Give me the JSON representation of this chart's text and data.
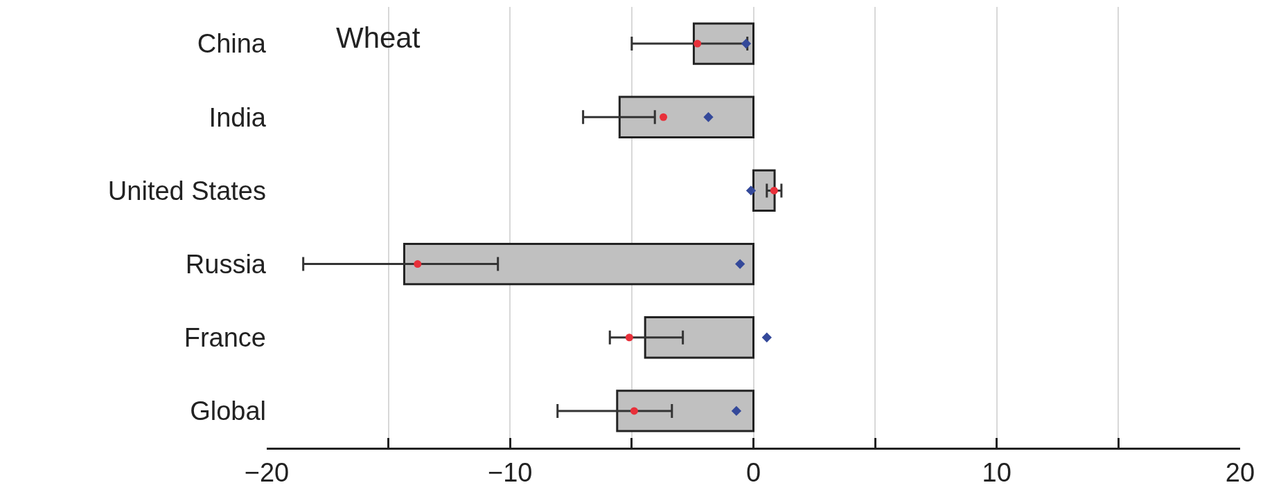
{
  "chart_data": {
    "type": "bar",
    "orientation": "horizontal",
    "categories": [
      "China",
      "India",
      "United States",
      "Russia",
      "France",
      "Global"
    ],
    "series": [
      {
        "color": "#c0c0c0",
        "values": [
          -2.45,
          -5.5,
          0.87,
          -14.35,
          -4.45,
          -5.6
        ]
      },
      {
        "type": "scatter",
        "color": "#e8303a",
        "marker": "circle",
        "values": [
          -2.3,
          -3.7,
          0.85,
          -13.8,
          -5.1,
          -4.9
        ],
        "errors": [
          [
            -5.0,
            -0.25
          ],
          [
            -7.0,
            -4.05
          ],
          [
            0.55,
            1.15
          ],
          [
            -18.5,
            -10.5
          ],
          [
            -5.9,
            -2.9
          ],
          [
            -8.05,
            -3.35
          ]
        ]
      },
      {
        "type": "scatter",
        "color": "#34499a",
        "marker": "diamond",
        "values": [
          -0.3,
          -1.85,
          -0.1,
          -0.55,
          0.55,
          -0.7
        ]
      }
    ],
    "xlim": [
      -20,
      20
    ],
    "xticks": [
      -20,
      {
        "value": -15,
        "label": null
      },
      -10,
      {
        "value": -5,
        "label": null
      },
      0,
      {
        "value": 5,
        "label": null
      },
      10,
      {
        "value": 15,
        "label": null
      },
      20
    ],
    "grid": "x",
    "annotations": [
      "Wheat"
    ]
  }
}
